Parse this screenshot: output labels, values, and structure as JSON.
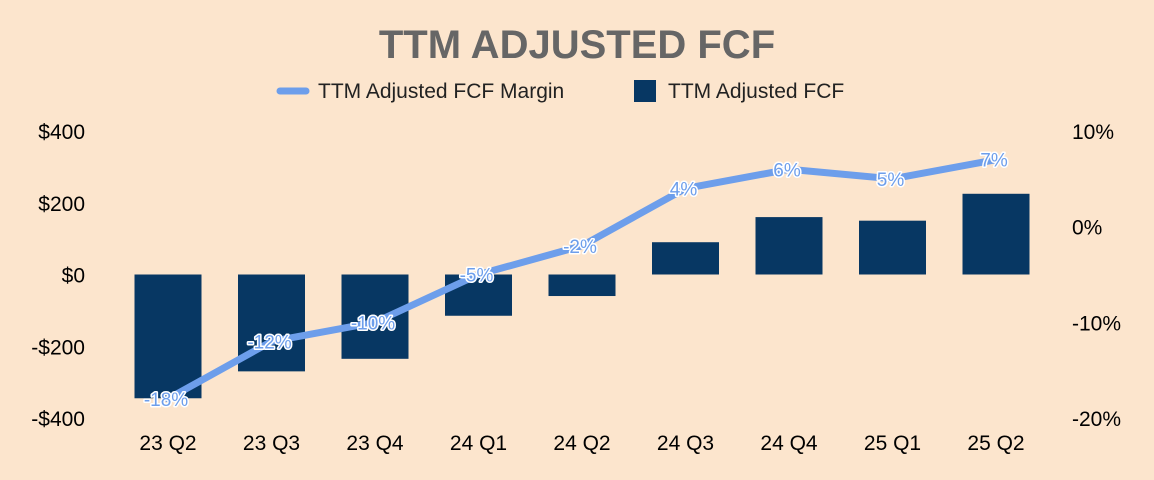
{
  "chart_data": {
    "type": "bar",
    "title": "TTM ADJUSTED FCF",
    "categories": [
      "23 Q2",
      "23 Q3",
      "23 Q4",
      "24 Q1",
      "24 Q2",
      "24 Q3",
      "24 Q4",
      "25 Q1",
      "25 Q2"
    ],
    "series": [
      {
        "name": "TTM Adjusted FCF",
        "type": "bar",
        "axis": "left",
        "color": "#073763",
        "values": [
          -345,
          -270,
          -235,
          -115,
          -60,
          90,
          160,
          150,
          225
        ]
      },
      {
        "name": "TTM Adjusted FCF Margin",
        "type": "line",
        "axis": "right",
        "color": "#6d9eeb",
        "values": [
          -18,
          -12,
          -10,
          -5,
          -2,
          4,
          6,
          5,
          7
        ],
        "data_labels": [
          "-18%",
          "-12%",
          "-10%",
          "-5%",
          "-2%",
          "4%",
          "6%",
          "5%",
          "7%"
        ]
      }
    ],
    "y_left": {
      "ylim": [
        -400,
        400
      ],
      "ticks": [
        -400,
        -200,
        0,
        200,
        400
      ],
      "tick_labels": [
        "-$400",
        "-$200",
        "$0",
        "$200",
        "$400"
      ]
    },
    "y_right": {
      "ylim": [
        -20,
        10
      ],
      "ticks": [
        -20,
        -10,
        0,
        10
      ],
      "tick_labels": [
        "-20%",
        "-10%",
        "0%",
        "10%"
      ]
    },
    "legend": {
      "position": "top-center",
      "entries": [
        "TTM Adjusted FCF Margin",
        "TTM Adjusted FCF"
      ]
    },
    "grid": false
  }
}
